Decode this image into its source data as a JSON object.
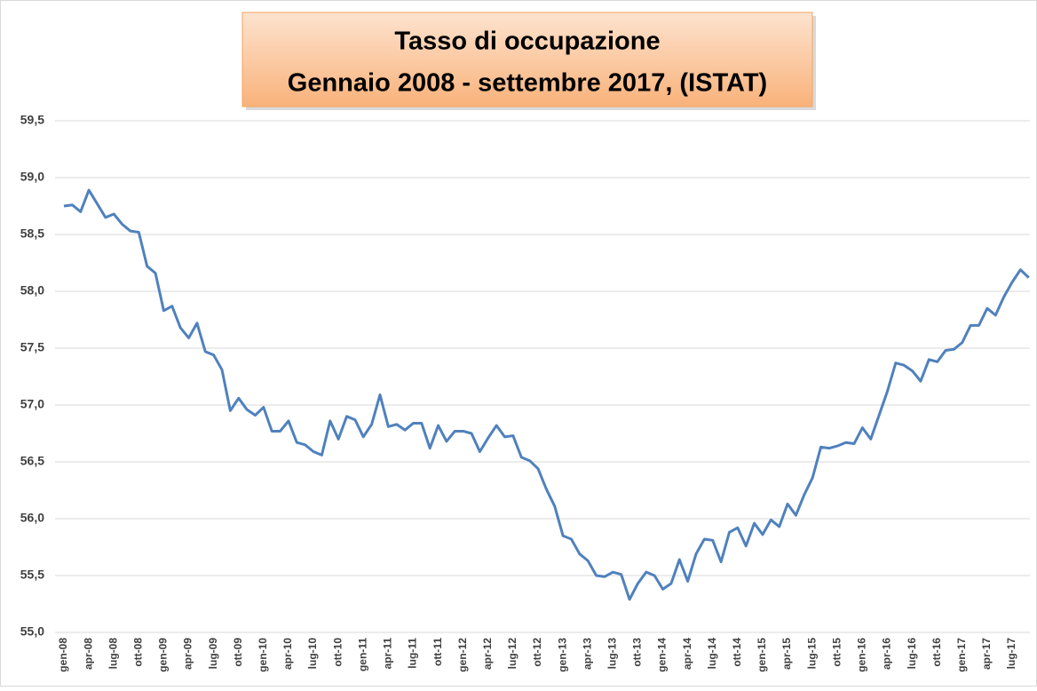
{
  "chart_data": {
    "type": "line",
    "title": "Tasso di occupazione",
    "subtitle": "Gennaio 2008 - settembre 2017, (ISTAT)",
    "categories": [
      "gen-08",
      null,
      null,
      "apr-08",
      null,
      null,
      "lug-08",
      null,
      null,
      "ott-08",
      null,
      null,
      "gen-09",
      null,
      null,
      "apr-09",
      null,
      null,
      "lug-09",
      null,
      null,
      "ott-09",
      null,
      null,
      "gen-10",
      null,
      null,
      "apr-10",
      null,
      null,
      "lug-10",
      null,
      null,
      "ott-10",
      null,
      null,
      "gen-11",
      null,
      null,
      "apr-11",
      null,
      null,
      "lug-11",
      null,
      null,
      "ott-11",
      null,
      null,
      "gen-12",
      null,
      null,
      "apr-12",
      null,
      null,
      "lug-12",
      null,
      null,
      "ott-12",
      null,
      null,
      "gen-13",
      null,
      null,
      "apr-13",
      null,
      null,
      "lug-13",
      null,
      null,
      "ott-13",
      null,
      null,
      "gen-14",
      null,
      null,
      "apr-14",
      null,
      null,
      "lug-14",
      null,
      null,
      "ott-14",
      null,
      null,
      "gen-15",
      null,
      null,
      "apr-15",
      null,
      null,
      "lug-15",
      null,
      null,
      "ott-15",
      null,
      null,
      "gen-16",
      null,
      null,
      "apr-16",
      null,
      null,
      "lug-16",
      null,
      null,
      "ott-16",
      null,
      null,
      "gen-17",
      null,
      null,
      "apr-17",
      null,
      null,
      "lug-17",
      null,
      null
    ],
    "series": [
      {
        "name": "Tasso di occupazione",
        "color": "#4f81bd",
        "values": [
          58.75,
          58.76,
          58.7,
          58.89,
          58.77,
          58.65,
          58.68,
          58.59,
          58.53,
          58.52,
          58.22,
          58.16,
          57.83,
          57.87,
          57.68,
          57.59,
          57.72,
          57.47,
          57.44,
          57.31,
          56.95,
          57.06,
          56.96,
          56.91,
          56.98,
          56.77,
          56.77,
          56.86,
          56.67,
          56.65,
          56.59,
          56.56,
          56.86,
          56.7,
          56.9,
          56.87,
          56.72,
          56.83,
          57.09,
          56.81,
          56.83,
          56.78,
          56.84,
          56.84,
          56.62,
          56.82,
          56.68,
          56.77,
          56.77,
          56.75,
          56.59,
          56.71,
          56.82,
          56.72,
          56.73,
          56.54,
          56.51,
          56.44,
          56.26,
          56.11,
          55.85,
          55.82,
          55.69,
          55.63,
          55.5,
          55.49,
          55.53,
          55.51,
          55.29,
          55.43,
          55.53,
          55.5,
          55.38,
          55.43,
          55.64,
          55.45,
          55.69,
          55.82,
          55.81,
          55.62,
          55.88,
          55.92,
          55.76,
          55.96,
          55.86,
          55.99,
          55.93,
          56.13,
          56.03,
          56.21,
          56.36,
          56.63,
          56.62,
          56.64,
          56.67,
          56.66,
          56.8,
          56.7,
          56.91,
          57.12,
          57.37,
          57.35,
          57.3,
          57.21,
          57.4,
          57.38,
          57.48,
          57.49,
          57.55,
          57.7,
          57.7,
          57.85,
          57.79,
          57.95,
          58.08,
          58.19,
          58.12
        ]
      }
    ],
    "ylim": [
      55,
      59.5
    ],
    "yticks": [
      {
        "value": 55,
        "label": "55,0"
      },
      {
        "value": 55.5,
        "label": "55,5"
      },
      {
        "value": 56,
        "label": "56,0"
      },
      {
        "value": 56.5,
        "label": "56,5"
      },
      {
        "value": 57,
        "label": "57,0"
      },
      {
        "value": 57.5,
        "label": "57,5"
      },
      {
        "value": 58,
        "label": "58,0"
      },
      {
        "value": 58.5,
        "label": "58,5"
      },
      {
        "value": 59,
        "label": "59,0"
      },
      {
        "value": 59.5,
        "label": "59,5"
      }
    ],
    "grid": true
  }
}
